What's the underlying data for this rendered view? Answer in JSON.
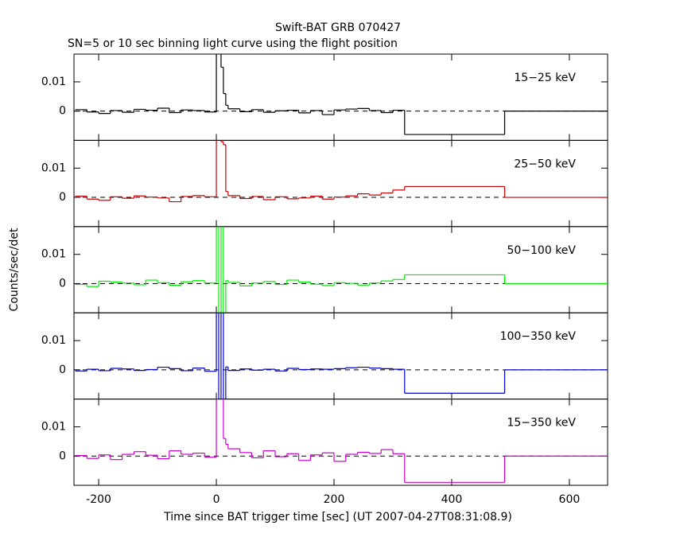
{
  "title": "Swift-BAT GRB 070427",
  "subtitle": "SN=5 or 10 sec binning light curve using the flight position",
  "xlabel": "Time since BAT trigger time [sec] (UT 2007-04-27T08:31:08.9)",
  "ylabel": "Counts/sec/det",
  "xlim": [
    -242,
    665
  ],
  "xticks": [
    -200,
    0,
    200,
    400,
    600
  ],
  "bins": [
    -240,
    -220,
    -200,
    -180,
    -160,
    -140,
    -120,
    -100,
    -80,
    -60,
    -40,
    -20,
    0,
    4,
    8,
    12,
    16,
    20,
    40,
    60,
    80,
    100,
    120,
    140,
    160,
    180,
    200,
    220,
    240,
    260,
    280,
    300,
    320,
    490,
    665
  ],
  "chart_data": [
    {
      "type": "step",
      "label": "15−25 keV",
      "color": "#000000",
      "ylim": [
        -0.01,
        0.0195
      ],
      "yticks": [
        0,
        0.01
      ],
      "values": [
        0.0005,
        -0.0003,
        -0.0008,
        0.0002,
        -0.0004,
        0.0006,
        0.0003,
        0.001,
        -0.0005,
        0.0004,
        0.0002,
        -0.0003,
        0.02,
        0.02,
        0.015,
        0.006,
        0.002,
        0.0008,
        -0.0002,
        0.0005,
        -0.0004,
        0.0001,
        0.0003,
        -0.0006,
        0.0002,
        -0.0012,
        0.0004,
        0.0007,
        0.0009,
        0.0002,
        -0.0005,
        0.0003,
        -0.008,
        0
      ]
    },
    {
      "type": "step",
      "label": "25−50 keV",
      "color": "#cc0000",
      "ylim": [
        -0.01,
        0.0195
      ],
      "yticks": [
        0,
        0.01
      ],
      "values": [
        0.0004,
        -0.0006,
        -0.001,
        0.0002,
        -0.0003,
        0.0005,
        0.0001,
        -0.0002,
        -0.0015,
        0.0003,
        0.0006,
        0.0002,
        0.02,
        0.02,
        0.019,
        0.018,
        0.002,
        0.0006,
        -0.0004,
        0.0003,
        -0.0008,
        0.0002,
        -0.0005,
        -0.0002,
        0.0004,
        -0.0006,
        0.0001,
        0.0005,
        0.0012,
        0.0008,
        0.0015,
        0.0025,
        0.0037,
        0
      ]
    },
    {
      "type": "step",
      "label": "50−100 keV",
      "color": "#00ee00",
      "ylim": [
        -0.01,
        0.0195
      ],
      "yticks": [
        0,
        0.01
      ],
      "values": [
        -0.0003,
        -0.001,
        0.0008,
        0.0005,
        0.0002,
        -0.0004,
        0.0012,
        0.0003,
        -0.0006,
        0.0006,
        0.001,
        0.0002,
        0.02,
        -0.01,
        0.02,
        -0.01,
        0.001,
        0.0004,
        -0.0008,
        0.0002,
        0.0007,
        -0.0003,
        0.0012,
        0.0005,
        -0.0002,
        -0.0007,
        0.0003,
        0.0001,
        -0.0005,
        0.0002,
        0.0009,
        0.0014,
        0.003,
        0
      ]
    },
    {
      "type": "step",
      "label": "100−350 keV",
      "color": "#0000cc",
      "ylim": [
        -0.01,
        0.0195
      ],
      "yticks": [
        0,
        0.01
      ],
      "values": [
        -0.0004,
        0.0002,
        -0.0003,
        0.0005,
        0.0003,
        -0.0002,
        0.0001,
        0.0009,
        0.0004,
        -0.0003,
        0.0006,
        -0.0005,
        0.02,
        -0.01,
        0.02,
        -0.01,
        0.001,
        -0.0002,
        0.0003,
        -0.0001,
        0.0002,
        -0.0004,
        0.0005,
        0.0001,
        0.0003,
        0.0002,
        0.0004,
        0.0007,
        0.0009,
        0.0006,
        0.0004,
        0.0002,
        -0.008,
        0
      ]
    },
    {
      "type": "step",
      "label": "15−350 keV",
      "color": "#cc00cc",
      "ylim": [
        -0.01,
        0.0195
      ],
      "yticks": [
        0,
        0.01
      ],
      "values": [
        0.0002,
        -0.0008,
        0.0004,
        -0.0012,
        0.0006,
        0.0015,
        0.0003,
        -0.0009,
        0.0018,
        0.0006,
        0.001,
        -0.0004,
        0.02,
        0.02,
        0.02,
        0.006,
        0.004,
        0.0025,
        0.0012,
        -0.0006,
        0.0018,
        -0.0002,
        0.0008,
        -0.0015,
        0.0004,
        0.0011,
        -0.0018,
        0.0006,
        0.0013,
        0.0009,
        0.0022,
        0.0008,
        -0.009,
        0
      ]
    }
  ]
}
